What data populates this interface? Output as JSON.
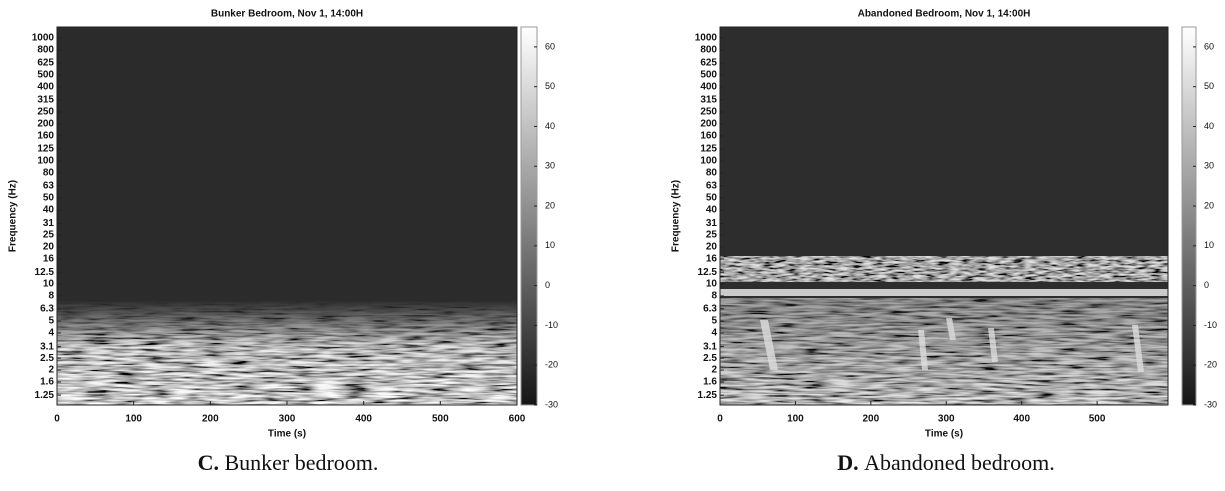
{
  "chart_data": [
    {
      "type": "spectrogram",
      "title": "Bunker Bedroom, Nov 1, 14:00H",
      "xlabel": "Time (s)",
      "ylabel": "Frequency (Hz)",
      "xlim": [
        0,
        600
      ],
      "xticks": [
        0,
        100,
        200,
        300,
        400,
        500,
        600
      ],
      "yscale": "log",
      "ylim": [
        1.04,
        1227
      ],
      "yticks": [
        1.25,
        1.6,
        2,
        2.5,
        3.1,
        4,
        5,
        6.3,
        8,
        10,
        12.5,
        16,
        20,
        25,
        31,
        40,
        50,
        63,
        80,
        100,
        125,
        160,
        200,
        250,
        315,
        400,
        500,
        625,
        800,
        1000
      ],
      "colorbar": {
        "lim": [
          -30,
          65
        ],
        "ticks": [
          -30,
          -20,
          -10,
          0,
          10,
          20,
          30,
          40,
          50,
          60
        ],
        "colors": [
          "#151515",
          "#8a8a8a",
          "#ffffff"
        ]
      },
      "caption_label": "C.",
      "caption": "Bunker bedroom."
    },
    {
      "type": "spectrogram",
      "title": "Abandoned Bedroom, Nov 1, 14:00H",
      "xlabel": "Time (s)",
      "ylabel": "Frequency (Hz)",
      "xlim": [
        0,
        594
      ],
      "xticks": [
        0,
        100,
        200,
        300,
        400,
        500
      ],
      "yscale": "log",
      "ylim": [
        1.04,
        1227
      ],
      "yticks": [
        1.25,
        1.6,
        2,
        2.5,
        3.1,
        4,
        5,
        6.3,
        8,
        10,
        12.5,
        16,
        20,
        25,
        31,
        40,
        50,
        63,
        80,
        100,
        125,
        160,
        200,
        250,
        315,
        400,
        500,
        625,
        800,
        1000
      ],
      "colorbar": {
        "lim": [
          -30,
          65
        ],
        "ticks": [
          -30,
          -20,
          -10,
          0,
          10,
          20,
          30,
          40,
          50,
          60
        ],
        "colors": [
          "#151515",
          "#8a8a8a",
          "#ffffff"
        ]
      },
      "caption_label": "D.",
      "caption": "Abandoned bedroom."
    }
  ]
}
